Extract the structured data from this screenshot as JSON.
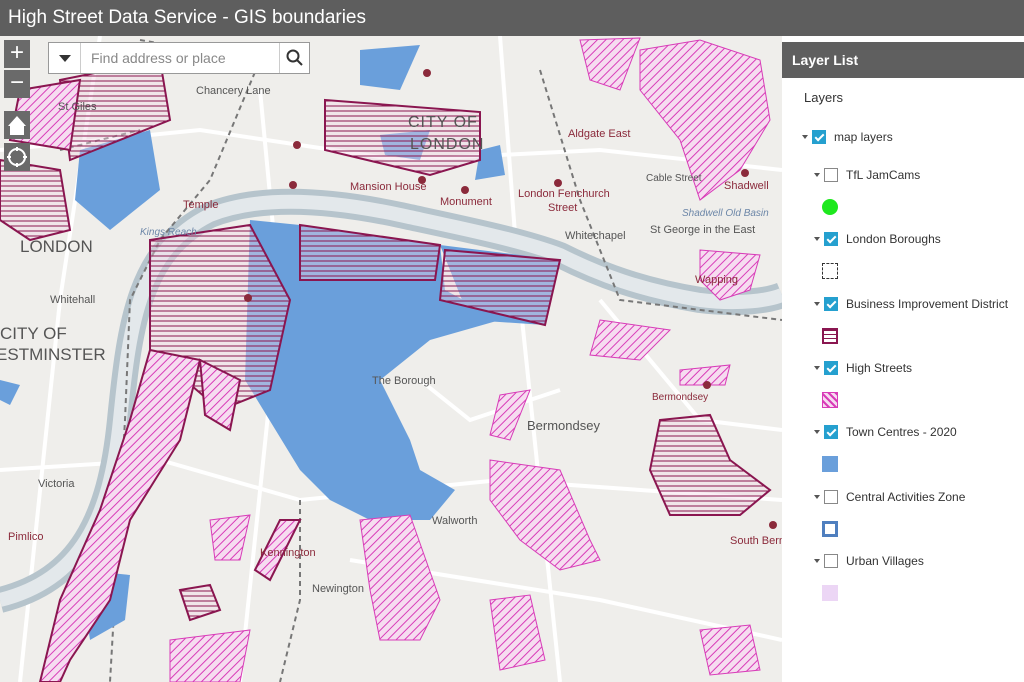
{
  "header": {
    "title": "High Street Data Service - GIS boundaries"
  },
  "search": {
    "placeholder": "Find address or place"
  },
  "controls": {
    "zoom_in": "+",
    "zoom_out": "−"
  },
  "map": {
    "labels": [
      "Chancery Lane",
      "St Giles",
      "Temple",
      "Mansion House",
      "Monument",
      "CITY OF",
      "LONDON",
      "Aldgate East",
      "London Fenchurch",
      "Street",
      "Shadwell",
      "Whitechapel",
      "St George in the East",
      "Wapping",
      "Whitehall",
      "CITY OF",
      "WESTMINSTER",
      "LONDON",
      "The Borough",
      "Bermondsey",
      "Bermondsey",
      "Victoria",
      "Pimlico",
      "Kennington",
      "Newington",
      "Walworth",
      "South Bermondsey",
      "Kings Reach",
      "Shadwell Old Basin",
      "Cable Street"
    ]
  },
  "layer_list": {
    "title": "Layer List",
    "heading": "Layers",
    "root": {
      "name": "map layers",
      "checked": true
    },
    "layers": [
      {
        "name": "TfL JamCams",
        "checked": false
      },
      {
        "name": "London Boroughs",
        "checked": true
      },
      {
        "name": "Business Improvement District",
        "checked": true
      },
      {
        "name": "High Streets",
        "checked": true
      },
      {
        "name": "Town Centres - 2020",
        "checked": true
      },
      {
        "name": "Central Activities Zone",
        "checked": false
      },
      {
        "name": "Urban Villages",
        "checked": false
      }
    ]
  }
}
